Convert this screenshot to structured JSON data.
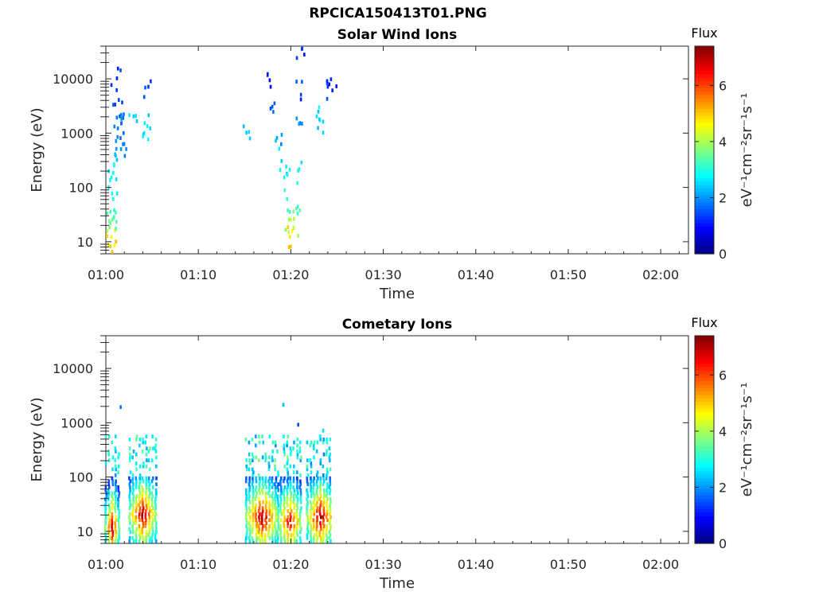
{
  "figure_title": "RPCICA150413T01.PNG",
  "chart_data": [
    {
      "type": "heatmap",
      "title": "Solar Wind Ions",
      "xlabel": "Time",
      "ylabel": "Energy (eV)",
      "yscale": "log",
      "ylim": [
        6,
        40000
      ],
      "xlim": [
        "01:00",
        "02:03"
      ],
      "x_ticks": [
        "01:00",
        "01:10",
        "01:20",
        "01:30",
        "01:40",
        "01:50",
        "02:00"
      ],
      "y_ticks": [
        "10",
        "100",
        "1000",
        "10000"
      ],
      "colorbar": {
        "title": "Flux",
        "label": "eV⁻¹cm⁻²sr⁻¹s⁻¹",
        "range": [
          0,
          7.4
        ],
        "ticks": [
          "0",
          "2",
          "4",
          "6"
        ],
        "colormap": "jet"
      },
      "points": [
        {
          "t": 0.5,
          "e": 8,
          "v": 5.0
        },
        {
          "t": 0.6,
          "e": 12,
          "v": 4.6
        },
        {
          "t": 0.4,
          "e": 18,
          "v": 3.8
        },
        {
          "t": 0.7,
          "e": 25,
          "v": 3.5
        },
        {
          "t": 0.5,
          "e": 35,
          "v": 3.2
        },
        {
          "t": 0.8,
          "e": 60,
          "v": 2.9
        },
        {
          "t": 0.6,
          "e": 150,
          "v": 2.8
        },
        {
          "t": 0.9,
          "e": 250,
          "v": 2.6
        },
        {
          "t": 1.0,
          "e": 400,
          "v": 2.3
        },
        {
          "t": 1.1,
          "e": 700,
          "v": 2.0
        },
        {
          "t": 1.3,
          "e": 1200,
          "v": 1.8
        },
        {
          "t": 1.5,
          "e": 2000,
          "v": 1.6
        },
        {
          "t": 1.4,
          "e": 4000,
          "v": 1.4
        },
        {
          "t": 1.2,
          "e": 10000,
          "v": 1.2
        },
        {
          "t": 1.7,
          "e": 1500,
          "v": 1.7
        },
        {
          "t": 2.2,
          "e": 500,
          "v": 1.9
        },
        {
          "t": 3.0,
          "e": 2000,
          "v": 2.4
        },
        {
          "t": 4.2,
          "e": 1500,
          "v": 2.7
        },
        {
          "t": 4.6,
          "e": 7000,
          "v": 1.3
        },
        {
          "t": 4.8,
          "e": 1200,
          "v": 2.5
        },
        {
          "t": 15.2,
          "e": 1000,
          "v": 2.4
        },
        {
          "t": 17.5,
          "e": 12000,
          "v": 1.2
        },
        {
          "t": 18.0,
          "e": 3000,
          "v": 1.5
        },
        {
          "t": 18.5,
          "e": 800,
          "v": 2.1
        },
        {
          "t": 19.0,
          "e": 300,
          "v": 2.5
        },
        {
          "t": 19.3,
          "e": 150,
          "v": 2.8
        },
        {
          "t": 19.6,
          "e": 60,
          "v": 3.1
        },
        {
          "t": 19.8,
          "e": 25,
          "v": 3.9
        },
        {
          "t": 19.9,
          "e": 12,
          "v": 4.8
        },
        {
          "t": 20.0,
          "e": 8,
          "v": 5.1
        },
        {
          "t": 20.3,
          "e": 18,
          "v": 4.2
        },
        {
          "t": 20.6,
          "e": 40,
          "v": 3.4
        },
        {
          "t": 20.8,
          "e": 200,
          "v": 2.7
        },
        {
          "t": 21.0,
          "e": 1500,
          "v": 1.8
        },
        {
          "t": 21.2,
          "e": 35000,
          "v": 1.2
        },
        {
          "t": 21.1,
          "e": 5000,
          "v": 1.4
        },
        {
          "t": 22.8,
          "e": 2000,
          "v": 2.6
        },
        {
          "t": 23.5,
          "e": 1000,
          "v": 2.5
        },
        {
          "t": 24.0,
          "e": 7000,
          "v": 1.3
        },
        {
          "t": 24.5,
          "e": 6000,
          "v": 1.2
        }
      ]
    },
    {
      "type": "heatmap",
      "title": "Cometary Ions",
      "xlabel": "Time",
      "ylabel": "Energy (eV)",
      "yscale": "log",
      "ylim": [
        6,
        40000
      ],
      "xlim": [
        "01:00",
        "02:03"
      ],
      "x_ticks": [
        "01:00",
        "01:10",
        "01:20",
        "01:30",
        "01:40",
        "01:50",
        "02:00"
      ],
      "y_ticks": [
        "10",
        "100",
        "1000",
        "10000"
      ],
      "colorbar": {
        "title": "Flux",
        "label": "eV⁻¹cm⁻²sr⁻¹s⁻¹",
        "range": [
          0,
          7.4
        ],
        "ticks": [
          "0",
          "2",
          "4",
          "6"
        ],
        "colormap": "jet"
      },
      "bursts": [
        {
          "t0": 0.0,
          "t1": 1.4,
          "peak": 7.0,
          "core_e": 12
        },
        {
          "t0": 2.6,
          "t1": 5.4,
          "peak": 7.2,
          "core_e": 20
        },
        {
          "t0": 15.2,
          "t1": 18.6,
          "peak": 7.2,
          "core_e": 18
        },
        {
          "t0": 18.6,
          "t1": 21.2,
          "peak": 6.8,
          "core_e": 15
        },
        {
          "t0": 21.8,
          "t1": 24.6,
          "peak": 7.3,
          "core_e": 18
        }
      ],
      "outliers": [
        {
          "t": 1.6,
          "e": 1900,
          "v": 1.8
        },
        {
          "t": 19.2,
          "e": 2100,
          "v": 2.3
        },
        {
          "t": 20.8,
          "e": 900,
          "v": 1.5
        },
        {
          "t": 23.5,
          "e": 700,
          "v": 2.6
        }
      ]
    }
  ]
}
